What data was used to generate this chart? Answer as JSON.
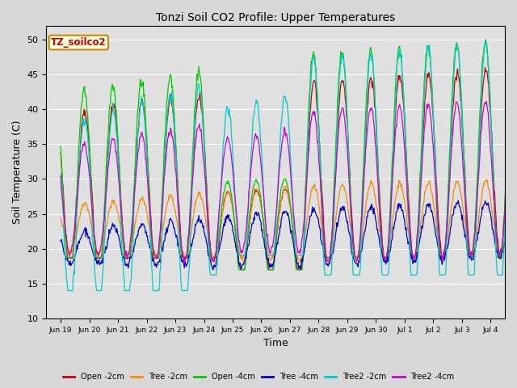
{
  "title": "Tonzi Soil CO2 Profile: Upper Temperatures",
  "xlabel": "Time",
  "ylabel": "Soil Temperature (C)",
  "ylim": [
    10,
    52
  ],
  "yticks": [
    10,
    15,
    20,
    25,
    30,
    35,
    40,
    45,
    50
  ],
  "fig_bg_color": "#d8d8d8",
  "plot_bg_color": "#e0e0e0",
  "series_labels": [
    "Open -2cm",
    "Tree -2cm",
    "Open -4cm",
    "Tree -4cm",
    "Tree2 -2cm",
    "Tree2 -4cm"
  ],
  "series_colors": [
    "#cc0000",
    "#ff8800",
    "#00cc00",
    "#0000cc",
    "#00cccc",
    "#cc00cc"
  ],
  "xtick_labels": [
    "Jun 19",
    "Jun 20",
    "Jun 21",
    "Jun 22",
    "Jun 23",
    "Jun 24",
    "Jun 25",
    "Jun 26",
    "Jun 27",
    "Jun 28",
    "Jun 29",
    "Jun 30",
    "Jul 1",
    "Jul 2",
    "Jul 3",
    "Jul 4"
  ],
  "n_days": 16,
  "pts_per_day": 48
}
